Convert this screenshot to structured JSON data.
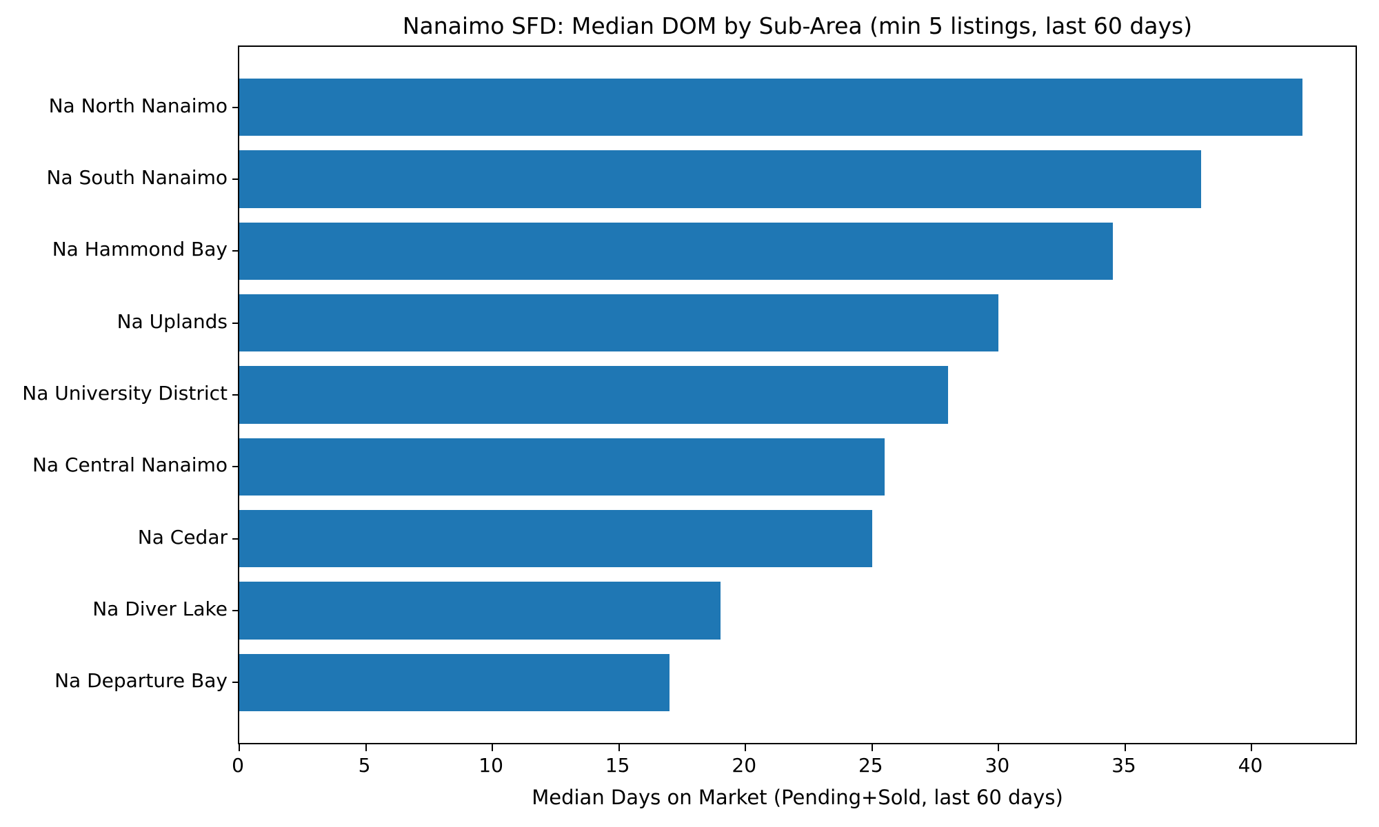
{
  "chart_data": {
    "type": "bar",
    "orientation": "horizontal",
    "title": "Nanaimo SFD: Median DOM by Sub-Area (min 5 listings, last 60 days)",
    "xlabel": "Median Days on Market (Pending+Sold, last 60 days)",
    "ylabel": "",
    "categories": [
      "Na North Nanaimo",
      "Na South Nanaimo",
      "Na Hammond Bay",
      "Na Uplands",
      "Na University District",
      "Na Central Nanaimo",
      "Na Cedar",
      "Na Diver Lake",
      "Na Departure Bay"
    ],
    "values": [
      42,
      38,
      34.5,
      30,
      28,
      25.5,
      25,
      19,
      17
    ],
    "xlim": [
      0,
      44.1
    ],
    "xticks": [
      0,
      5,
      10,
      15,
      20,
      25,
      30,
      35,
      40
    ],
    "bar_color": "#1f77b4",
    "grid": false,
    "legend": null,
    "bar_height_fraction": 0.8
  }
}
